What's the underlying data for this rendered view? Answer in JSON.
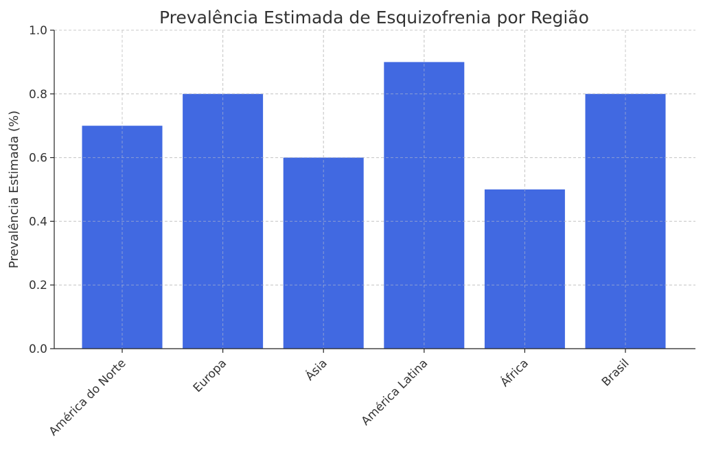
{
  "chart_data": {
    "type": "bar",
    "title": "Prevalência Estimada de Esquizofrenia por Região",
    "xlabel": "",
    "ylabel": "Prevalência Estimada (%)",
    "categories": [
      "América do Norte",
      "Europa",
      "Ásia",
      "América Latina",
      "África",
      "Brasil"
    ],
    "values": [
      0.7,
      0.8,
      0.6,
      0.9,
      0.5,
      0.8
    ],
    "ylim": [
      0,
      1.0
    ],
    "yticks": [
      "0.0",
      "0.2",
      "0.4",
      "0.6",
      "0.8",
      "1.0"
    ],
    "grid": true,
    "bar_color": "#4169E1"
  }
}
